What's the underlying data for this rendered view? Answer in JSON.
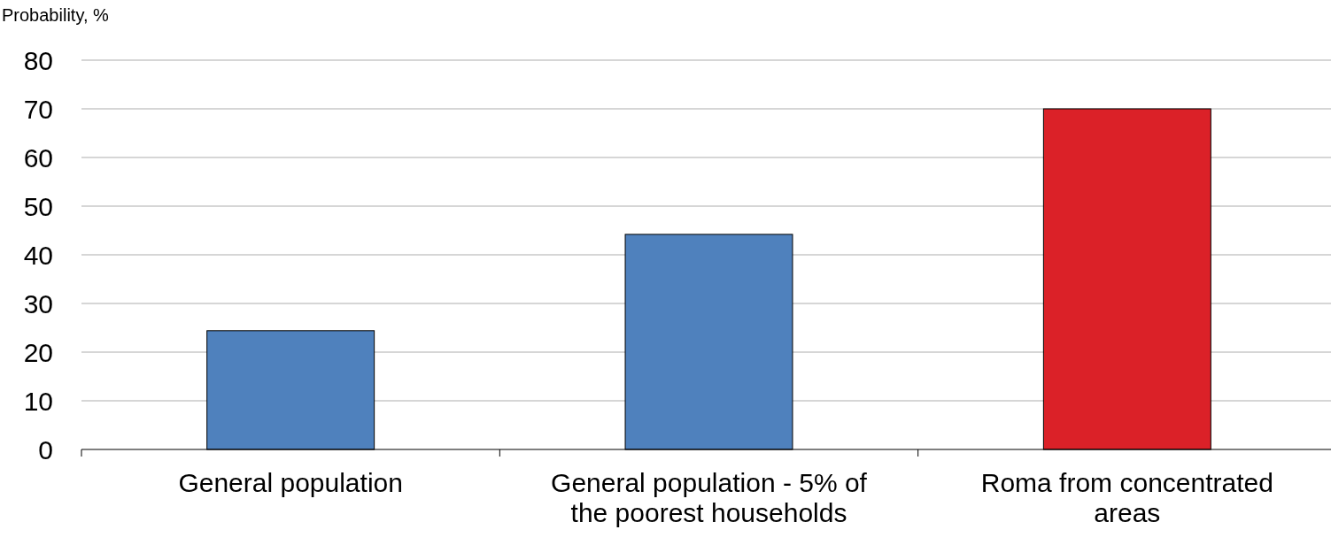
{
  "chart_data": {
    "type": "bar",
    "ylabel": "Probability, %",
    "categories": [
      "General population",
      "General population - 5% of the poorest households",
      "Roma from concentrated areas"
    ],
    "values": [
      24.4,
      44.2,
      70.0
    ],
    "colors": [
      "#4f81bd",
      "#4f81bd",
      "#db2128"
    ],
    "ylim": [
      0,
      80
    ],
    "yticks": [
      0,
      10,
      20,
      30,
      40,
      50,
      60,
      70,
      80
    ],
    "grid": "y"
  }
}
